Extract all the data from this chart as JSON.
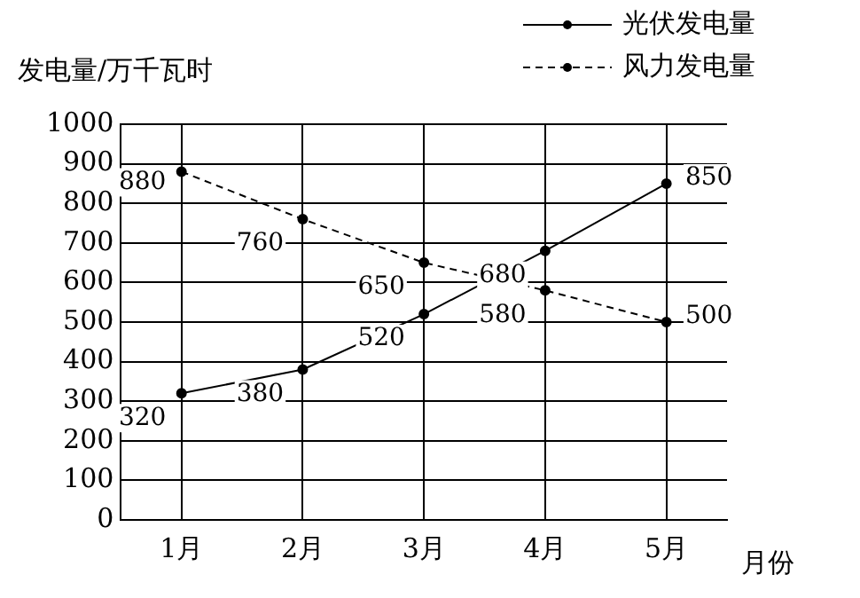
{
  "chart_data": {
    "type": "line",
    "ylabel": "发电量/万千瓦时",
    "xlabel": "月份",
    "categories": [
      "1月",
      "2月",
      "3月",
      "4月",
      "5月"
    ],
    "series": [
      {
        "name": "光伏发电量",
        "color": "#000000",
        "values": [
          320,
          380,
          520,
          680,
          850
        ],
        "line_style": "solid"
      },
      {
        "name": "风力发电量",
        "color": "#000000",
        "values": [
          880,
          760,
          650,
          580,
          500
        ],
        "line_style": "dashed"
      }
    ],
    "ylim": [
      0,
      1000
    ],
    "yticks": [
      0,
      100,
      200,
      300,
      400,
      500,
      600,
      700,
      800,
      900,
      1000
    ],
    "grid": true,
    "legend": "top right",
    "marker": "circle",
    "data_labels": true
  }
}
